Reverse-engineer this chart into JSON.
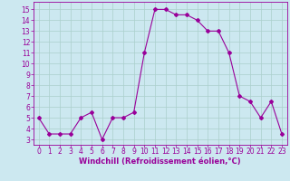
{
  "x": [
    0,
    1,
    2,
    3,
    4,
    5,
    6,
    7,
    8,
    9,
    10,
    11,
    12,
    13,
    14,
    15,
    16,
    17,
    18,
    19,
    20,
    21,
    22,
    23
  ],
  "y": [
    5.0,
    3.5,
    3.5,
    3.5,
    5.0,
    5.5,
    3.0,
    5.0,
    5.0,
    5.5,
    11.0,
    15.0,
    15.0,
    14.5,
    14.5,
    14.0,
    13.0,
    13.0,
    11.0,
    7.0,
    6.5,
    5.0,
    6.5,
    3.5
  ],
  "line_color": "#990099",
  "marker": "D",
  "marker_size": 2.0,
  "background_color": "#cce8f0",
  "grid_color": "#aacfcc",
  "xlabel": "Windchill (Refroidissement éolien,°C)",
  "xlabel_color": "#990099",
  "tick_color": "#990099",
  "ylabel_ticks": [
    3,
    4,
    5,
    6,
    7,
    8,
    9,
    10,
    11,
    12,
    13,
    14,
    15
  ],
  "ylim": [
    2.5,
    15.7
  ],
  "xlim": [
    -0.5,
    23.5
  ],
  "xticks": [
    0,
    1,
    2,
    3,
    4,
    5,
    6,
    7,
    8,
    9,
    10,
    11,
    12,
    13,
    14,
    15,
    16,
    17,
    18,
    19,
    20,
    21,
    22,
    23
  ],
  "axis_fontsize": 5.5,
  "tick_fontsize": 5.5,
  "xlabel_fontsize": 6.0
}
